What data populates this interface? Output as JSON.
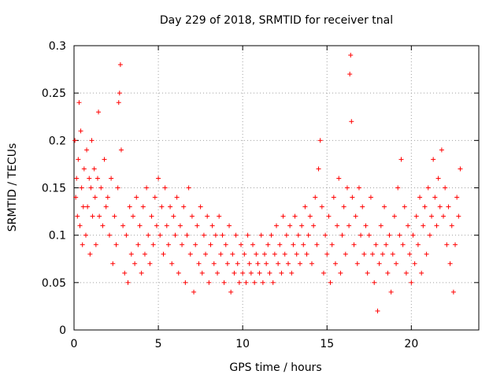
{
  "chart_data": {
    "type": "scatter",
    "title": "Day 229 of 2018, SRMTID for receiver tnal",
    "xlabel": "GPS time / hours",
    "ylabel": "SRMTID / TECUs",
    "xlim": [
      0,
      24
    ],
    "ylim": [
      0,
      0.3
    ],
    "xticks": [
      0,
      5,
      10,
      15,
      20
    ],
    "xtick_labels": [
      "0",
      "5",
      "10",
      "15",
      "20"
    ],
    "yticks": [
      0,
      0.05,
      0.1,
      0.15,
      0.2,
      0.25,
      0.3
    ],
    "ytick_labels": [
      "0",
      "0.05",
      "0.1",
      "0.15",
      "0.2",
      "0.25",
      "0.3"
    ],
    "grid": true,
    "legend": "none",
    "marker": "+",
    "color": "#ff0000",
    "points": [
      [
        0.05,
        0.2
      ],
      [
        0.1,
        0.14
      ],
      [
        0.15,
        0.16
      ],
      [
        0.2,
        0.12
      ],
      [
        0.25,
        0.18
      ],
      [
        0.3,
        0.24
      ],
      [
        0.35,
        0.11
      ],
      [
        0.4,
        0.21
      ],
      [
        0.45,
        0.15
      ],
      [
        0.5,
        0.09
      ],
      [
        0.55,
        0.13
      ],
      [
        0.6,
        0.17
      ],
      [
        0.7,
        0.1
      ],
      [
        0.75,
        0.19
      ],
      [
        0.8,
        0.13
      ],
      [
        0.9,
        0.16
      ],
      [
        0.95,
        0.08
      ],
      [
        1.0,
        0.15
      ],
      [
        1.05,
        0.2
      ],
      [
        1.1,
        0.12
      ],
      [
        1.2,
        0.17
      ],
      [
        1.25,
        0.14
      ],
      [
        1.3,
        0.09
      ],
      [
        1.4,
        0.16
      ],
      [
        1.45,
        0.23
      ],
      [
        1.5,
        0.12
      ],
      [
        1.6,
        0.15
      ],
      [
        1.7,
        0.11
      ],
      [
        1.8,
        0.18
      ],
      [
        1.9,
        0.13
      ],
      [
        2.0,
        0.14
      ],
      [
        2.1,
        0.1
      ],
      [
        2.2,
        0.16
      ],
      [
        2.3,
        0.07
      ],
      [
        2.4,
        0.12
      ],
      [
        2.5,
        0.09
      ],
      [
        2.6,
        0.15
      ],
      [
        2.65,
        0.24
      ],
      [
        2.7,
        0.25
      ],
      [
        2.75,
        0.28
      ],
      [
        2.8,
        0.19
      ],
      [
        2.9,
        0.11
      ],
      [
        3.0,
        0.06
      ],
      [
        3.1,
        0.1
      ],
      [
        3.2,
        0.05
      ],
      [
        3.3,
        0.13
      ],
      [
        3.4,
        0.08
      ],
      [
        3.5,
        0.12
      ],
      [
        3.6,
        0.07
      ],
      [
        3.7,
        0.14
      ],
      [
        3.8,
        0.09
      ],
      [
        3.9,
        0.11
      ],
      [
        4.0,
        0.06
      ],
      [
        4.1,
        0.13
      ],
      [
        4.2,
        0.08
      ],
      [
        4.3,
        0.15
      ],
      [
        4.4,
        0.1
      ],
      [
        4.5,
        0.07
      ],
      [
        4.6,
        0.12
      ],
      [
        4.7,
        0.09
      ],
      [
        4.8,
        0.14
      ],
      [
        4.9,
        0.11
      ],
      [
        5.0,
        0.16
      ],
      [
        5.1,
        0.1
      ],
      [
        5.2,
        0.13
      ],
      [
        5.3,
        0.08
      ],
      [
        5.4,
        0.15
      ],
      [
        5.5,
        0.11
      ],
      [
        5.6,
        0.09
      ],
      [
        5.7,
        0.13
      ],
      [
        5.8,
        0.07
      ],
      [
        5.9,
        0.12
      ],
      [
        6.0,
        0.1
      ],
      [
        6.1,
        0.14
      ],
      [
        6.2,
        0.06
      ],
      [
        6.3,
        0.11
      ],
      [
        6.4,
        0.09
      ],
      [
        6.5,
        0.13
      ],
      [
        6.6,
        0.05
      ],
      [
        6.7,
        0.1
      ],
      [
        6.8,
        0.15
      ],
      [
        6.9,
        0.08
      ],
      [
        7.0,
        0.12
      ],
      [
        7.1,
        0.04
      ],
      [
        7.2,
        0.09
      ],
      [
        7.3,
        0.11
      ],
      [
        7.4,
        0.07
      ],
      [
        7.5,
        0.13
      ],
      [
        7.6,
        0.06
      ],
      [
        7.7,
        0.1
      ],
      [
        7.8,
        0.08
      ],
      [
        7.9,
        0.12
      ],
      [
        8.0,
        0.05
      ],
      [
        8.1,
        0.09
      ],
      [
        8.2,
        0.11
      ],
      [
        8.3,
        0.07
      ],
      [
        8.4,
        0.1
      ],
      [
        8.5,
        0.06
      ],
      [
        8.6,
        0.12
      ],
      [
        8.7,
        0.08
      ],
      [
        8.8,
        0.1
      ],
      [
        8.9,
        0.05
      ],
      [
        9.0,
        0.09
      ],
      [
        9.1,
        0.07
      ],
      [
        9.2,
        0.11
      ],
      [
        9.3,
        0.04
      ],
      [
        9.4,
        0.08
      ],
      [
        9.5,
        0.06
      ],
      [
        9.6,
        0.1
      ],
      [
        9.7,
        0.07
      ],
      [
        9.8,
        0.05
      ],
      [
        9.9,
        0.09
      ],
      [
        10.0,
        0.06
      ],
      [
        10.1,
        0.08
      ],
      [
        10.2,
        0.05
      ],
      [
        10.3,
        0.1
      ],
      [
        10.4,
        0.07
      ],
      [
        10.5,
        0.06
      ],
      [
        10.6,
        0.09
      ],
      [
        10.7,
        0.05
      ],
      [
        10.8,
        0.08
      ],
      [
        10.9,
        0.07
      ],
      [
        11.0,
        0.06
      ],
      [
        11.1,
        0.1
      ],
      [
        11.2,
        0.05
      ],
      [
        11.3,
        0.08
      ],
      [
        11.4,
        0.07
      ],
      [
        11.5,
        0.09
      ],
      [
        11.6,
        0.06
      ],
      [
        11.7,
        0.1
      ],
      [
        11.8,
        0.05
      ],
      [
        11.9,
        0.08
      ],
      [
        12.0,
        0.11
      ],
      [
        12.1,
        0.07
      ],
      [
        12.2,
        0.09
      ],
      [
        12.3,
        0.06
      ],
      [
        12.4,
        0.12
      ],
      [
        12.5,
        0.08
      ],
      [
        12.6,
        0.1
      ],
      [
        12.7,
        0.07
      ],
      [
        12.8,
        0.11
      ],
      [
        12.9,
        0.06
      ],
      [
        13.0,
        0.09
      ],
      [
        13.1,
        0.12
      ],
      [
        13.2,
        0.08
      ],
      [
        13.3,
        0.1
      ],
      [
        13.4,
        0.07
      ],
      [
        13.5,
        0.11
      ],
      [
        13.6,
        0.09
      ],
      [
        13.7,
        0.13
      ],
      [
        13.8,
        0.08
      ],
      [
        13.9,
        0.1
      ],
      [
        14.0,
        0.12
      ],
      [
        14.1,
        0.07
      ],
      [
        14.2,
        0.11
      ],
      [
        14.3,
        0.14
      ],
      [
        14.4,
        0.09
      ],
      [
        14.5,
        0.17
      ],
      [
        14.6,
        0.2
      ],
      [
        14.7,
        0.13
      ],
      [
        14.8,
        0.06
      ],
      [
        14.9,
        0.1
      ],
      [
        15.0,
        0.08
      ],
      [
        15.1,
        0.12
      ],
      [
        15.2,
        0.05
      ],
      [
        15.3,
        0.09
      ],
      [
        15.4,
        0.14
      ],
      [
        15.5,
        0.07
      ],
      [
        15.6,
        0.11
      ],
      [
        15.7,
        0.16
      ],
      [
        15.8,
        0.06
      ],
      [
        15.9,
        0.1
      ],
      [
        16.0,
        0.13
      ],
      [
        16.1,
        0.08
      ],
      [
        16.2,
        0.15
      ],
      [
        16.3,
        0.11
      ],
      [
        16.35,
        0.27
      ],
      [
        16.4,
        0.29
      ],
      [
        16.45,
        0.22
      ],
      [
        16.5,
        0.14
      ],
      [
        16.6,
        0.09
      ],
      [
        16.7,
        0.12
      ],
      [
        16.8,
        0.07
      ],
      [
        16.9,
        0.15
      ],
      [
        17.0,
        0.1
      ],
      [
        17.1,
        0.13
      ],
      [
        17.2,
        0.08
      ],
      [
        17.3,
        0.11
      ],
      [
        17.4,
        0.06
      ],
      [
        17.5,
        0.1
      ],
      [
        17.6,
        0.14
      ],
      [
        17.7,
        0.08
      ],
      [
        17.8,
        0.05
      ],
      [
        17.9,
        0.09
      ],
      [
        18.0,
        0.02
      ],
      [
        18.1,
        0.07
      ],
      [
        18.2,
        0.11
      ],
      [
        18.3,
        0.08
      ],
      [
        18.4,
        0.13
      ],
      [
        18.5,
        0.09
      ],
      [
        18.6,
        0.06
      ],
      [
        18.7,
        0.1
      ],
      [
        18.8,
        0.04
      ],
      [
        18.9,
        0.08
      ],
      [
        19.0,
        0.12
      ],
      [
        19.1,
        0.07
      ],
      [
        19.2,
        0.15
      ],
      [
        19.3,
        0.1
      ],
      [
        19.4,
        0.18
      ],
      [
        19.5,
        0.09
      ],
      [
        19.6,
        0.13
      ],
      [
        19.7,
        0.06
      ],
      [
        19.8,
        0.11
      ],
      [
        19.9,
        0.08
      ],
      [
        20.0,
        0.05
      ],
      [
        20.1,
        0.1
      ],
      [
        20.2,
        0.07
      ],
      [
        20.3,
        0.12
      ],
      [
        20.4,
        0.09
      ],
      [
        20.5,
        0.14
      ],
      [
        20.6,
        0.06
      ],
      [
        20.7,
        0.11
      ],
      [
        20.8,
        0.13
      ],
      [
        20.9,
        0.08
      ],
      [
        21.0,
        0.15
      ],
      [
        21.1,
        0.1
      ],
      [
        21.2,
        0.12
      ],
      [
        21.3,
        0.18
      ],
      [
        21.4,
        0.14
      ],
      [
        21.5,
        0.11
      ],
      [
        21.6,
        0.16
      ],
      [
        21.7,
        0.13
      ],
      [
        21.8,
        0.19
      ],
      [
        21.9,
        0.12
      ],
      [
        22.0,
        0.15
      ],
      [
        22.1,
        0.09
      ],
      [
        22.2,
        0.13
      ],
      [
        22.3,
        0.07
      ],
      [
        22.4,
        0.11
      ],
      [
        22.5,
        0.04
      ],
      [
        22.6,
        0.09
      ],
      [
        22.7,
        0.14
      ],
      [
        22.8,
        0.12
      ],
      [
        22.9,
        0.17
      ]
    ]
  }
}
